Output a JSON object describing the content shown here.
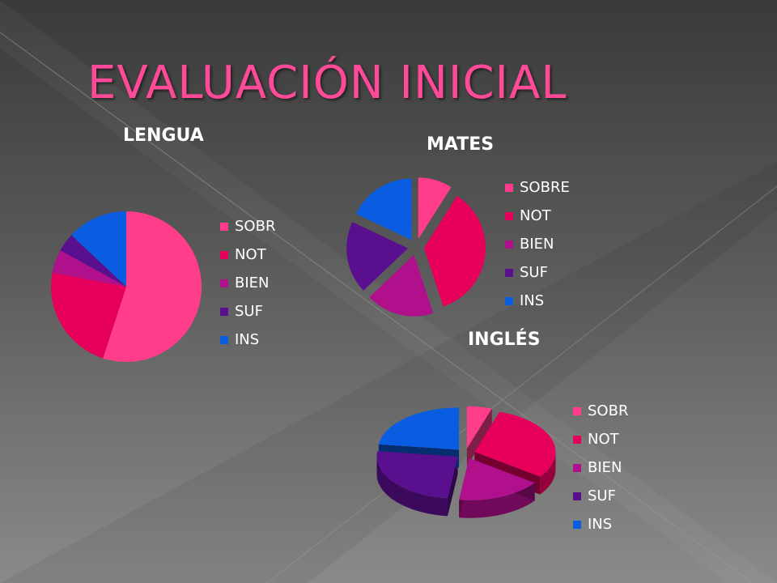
{
  "slide": {
    "title": "EVALUACIÓN INICIAL"
  },
  "colors": {
    "accent": "#ff4a9a",
    "series": [
      "#ff3d8b",
      "#e6005c",
      "#b0108c",
      "#5a0f8f",
      "#0a5ce0"
    ]
  },
  "chart_data": [
    {
      "type": "pie",
      "title": "LENGUA",
      "categories": [
        "SOBR",
        "NOT",
        "BIEN",
        "SUF",
        "INS"
      ],
      "values": [
        55,
        23,
        5,
        4,
        13
      ],
      "legend": "right"
    },
    {
      "type": "pie",
      "title": "MATES",
      "categories": [
        "SOBRE",
        "NOT",
        "BIEN",
        "SUF",
        "INS"
      ],
      "values": [
        8,
        32,
        16,
        17,
        16
      ],
      "exploded": true,
      "legend": "right"
    },
    {
      "type": "pie",
      "title": "INGLÉS",
      "categories": [
        "SOBR",
        "NOT",
        "BIEN",
        "SUF",
        "INS"
      ],
      "values": [
        5,
        30,
        17,
        25,
        23
      ],
      "exploded": true,
      "3d": true,
      "legend": "right"
    }
  ]
}
